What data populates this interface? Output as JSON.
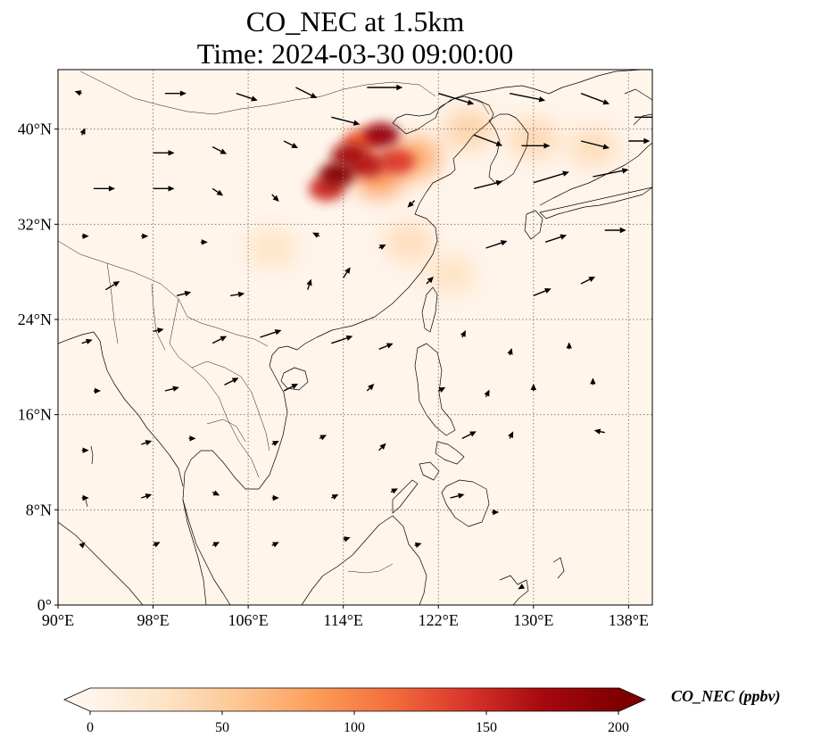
{
  "title": {
    "line1": "CO_NEC at 1.5km",
    "line2": "Time: 2024-03-30 09:00:00"
  },
  "map": {
    "projection": "PlateCarree",
    "lon_range": [
      90,
      140
    ],
    "lat_range": [
      0,
      45
    ],
    "lon_ticks": [
      {
        "value": 90,
        "label": "90°E"
      },
      {
        "value": 98,
        "label": "98°E"
      },
      {
        "value": 106,
        "label": "106°E"
      },
      {
        "value": 114,
        "label": "114°E"
      },
      {
        "value": 122,
        "label": "122°E"
      },
      {
        "value": 130,
        "label": "130°E"
      },
      {
        "value": 138,
        "label": "138°E"
      }
    ],
    "lat_ticks": [
      {
        "value": 0,
        "label": "0°"
      },
      {
        "value": 8,
        "label": "8°N"
      },
      {
        "value": 16,
        "label": "16°N"
      },
      {
        "value": 24,
        "label": "24°N"
      },
      {
        "value": 32,
        "label": "32°N"
      },
      {
        "value": 40,
        "label": "40°N"
      }
    ],
    "gridlines": true,
    "background_color": "#fff5eb",
    "coastline_color": "#000000"
  },
  "chart_data": {
    "type": "heatmap",
    "variable": "CO_NEC",
    "level": "1.5km",
    "time": "2024-03-30 09:00:00",
    "colormap": "OrRd",
    "vmin": 0,
    "vmax": 200,
    "hotspots": [
      {
        "lon": 113.5,
        "lat": 36.2,
        "value": 195
      },
      {
        "lon": 114.5,
        "lat": 37.8,
        "value": 170
      },
      {
        "lon": 117.2,
        "lat": 39.5,
        "value": 180
      },
      {
        "lon": 116.0,
        "lat": 37.0,
        "value": 160
      },
      {
        "lon": 118.5,
        "lat": 37.3,
        "value": 140
      },
      {
        "lon": 112.6,
        "lat": 35.0,
        "value": 150
      },
      {
        "lon": 115.5,
        "lat": 39.0,
        "value": 120
      },
      {
        "lon": 120.0,
        "lat": 37.6,
        "value": 80
      },
      {
        "lon": 117.0,
        "lat": 36.0,
        "value": 90
      },
      {
        "lon": 124.5,
        "lat": 40.0,
        "value": 45
      },
      {
        "lon": 130.0,
        "lat": 39.2,
        "value": 40
      },
      {
        "lon": 135.0,
        "lat": 38.5,
        "value": 35
      },
      {
        "lon": 119.5,
        "lat": 30.5,
        "value": 35
      },
      {
        "lon": 108.0,
        "lat": 30.0,
        "value": 28
      },
      {
        "lon": 123.0,
        "lat": 27.8,
        "value": 30
      }
    ],
    "wind_vectors": [
      {
        "lon": 92,
        "lat": 43,
        "u": -1,
        "v": 0.3
      },
      {
        "lon": 99,
        "lat": 43,
        "u": 3,
        "v": 0
      },
      {
        "lon": 105,
        "lat": 43,
        "u": 3,
        "v": -1
      },
      {
        "lon": 110,
        "lat": 43.5,
        "u": 3,
        "v": -1.5
      },
      {
        "lon": 116,
        "lat": 43.5,
        "u": 5,
        "v": 0
      },
      {
        "lon": 122,
        "lat": 43,
        "u": 5,
        "v": -1.5
      },
      {
        "lon": 128,
        "lat": 43,
        "u": 5,
        "v": -1
      },
      {
        "lon": 134,
        "lat": 43,
        "u": 4,
        "v": -1.5
      },
      {
        "lon": 138.5,
        "lat": 41,
        "u": 4,
        "v": 0
      },
      {
        "lon": 92,
        "lat": 39.5,
        "u": 0.5,
        "v": 1
      },
      {
        "lon": 98,
        "lat": 38,
        "u": 3,
        "v": 0
      },
      {
        "lon": 103,
        "lat": 38.5,
        "u": 2,
        "v": -1
      },
      {
        "lon": 109,
        "lat": 39,
        "u": 2,
        "v": -1
      },
      {
        "lon": 113,
        "lat": 41,
        "u": 4,
        "v": -1
      },
      {
        "lon": 125,
        "lat": 39.5,
        "u": 4,
        "v": -1.5
      },
      {
        "lon": 129,
        "lat": 38.6,
        "u": 4,
        "v": 0
      },
      {
        "lon": 134,
        "lat": 39,
        "u": 4,
        "v": -1
      },
      {
        "lon": 138,
        "lat": 39,
        "u": 3,
        "v": 0
      },
      {
        "lon": 93,
        "lat": 35,
        "u": 3,
        "v": 0
      },
      {
        "lon": 98,
        "lat": 35,
        "u": 3,
        "v": 0
      },
      {
        "lon": 103,
        "lat": 35,
        "u": 1.5,
        "v": -1
      },
      {
        "lon": 108,
        "lat": 34.5,
        "u": 1,
        "v": -1
      },
      {
        "lon": 120,
        "lat": 34,
        "u": -1,
        "v": -1
      },
      {
        "lon": 125,
        "lat": 35,
        "u": 4,
        "v": 1
      },
      {
        "lon": 130,
        "lat": 35.5,
        "u": 5,
        "v": 1.5
      },
      {
        "lon": 135,
        "lat": 36,
        "u": 5,
        "v": 1
      },
      {
        "lon": 92,
        "lat": 31,
        "u": 1,
        "v": 0
      },
      {
        "lon": 97,
        "lat": 31,
        "u": 1,
        "v": 0
      },
      {
        "lon": 102,
        "lat": 30.5,
        "u": 1,
        "v": 0
      },
      {
        "lon": 112,
        "lat": 31,
        "u": -1,
        "v": 0.5
      },
      {
        "lon": 117,
        "lat": 30,
        "u": 1,
        "v": 0.5
      },
      {
        "lon": 126,
        "lat": 30,
        "u": 3,
        "v": 1
      },
      {
        "lon": 131,
        "lat": 30.5,
        "u": 3,
        "v": 1
      },
      {
        "lon": 136,
        "lat": 31.5,
        "u": 3,
        "v": 0
      },
      {
        "lon": 94,
        "lat": 26.5,
        "u": 2,
        "v": 1.2
      },
      {
        "lon": 100,
        "lat": 26,
        "u": 2,
        "v": 0.5
      },
      {
        "lon": 104.5,
        "lat": 26,
        "u": 2,
        "v": 0.3
      },
      {
        "lon": 111,
        "lat": 26.5,
        "u": 0.5,
        "v": 1.5
      },
      {
        "lon": 114,
        "lat": 27.5,
        "u": 1,
        "v": 1.5
      },
      {
        "lon": 121,
        "lat": 27,
        "u": 1,
        "v": 1
      },
      {
        "lon": 130,
        "lat": 26,
        "u": 2.5,
        "v": 1
      },
      {
        "lon": 134,
        "lat": 27,
        "u": 2,
        "v": 1
      },
      {
        "lon": 92,
        "lat": 22,
        "u": 1.5,
        "v": 0.5
      },
      {
        "lon": 98,
        "lat": 23,
        "u": 1.5,
        "v": 0.3
      },
      {
        "lon": 103,
        "lat": 22,
        "u": 2,
        "v": 1
      },
      {
        "lon": 107,
        "lat": 22.5,
        "u": 3,
        "v": 1
      },
      {
        "lon": 113,
        "lat": 22,
        "u": 3,
        "v": 1
      },
      {
        "lon": 117,
        "lat": 21.5,
        "u": 2,
        "v": 0.8
      },
      {
        "lon": 124,
        "lat": 22.5,
        "u": 0.5,
        "v": 1
      },
      {
        "lon": 128,
        "lat": 21,
        "u": 0.3,
        "v": 1
      },
      {
        "lon": 133,
        "lat": 21.5,
        "u": 0,
        "v": 1
      },
      {
        "lon": 93,
        "lat": 18,
        "u": 1,
        "v": 0
      },
      {
        "lon": 99,
        "lat": 18,
        "u": 2,
        "v": 0.5
      },
      {
        "lon": 104,
        "lat": 18.5,
        "u": 2,
        "v": 1
      },
      {
        "lon": 109,
        "lat": 18,
        "u": 2,
        "v": 1
      },
      {
        "lon": 116,
        "lat": 18,
        "u": 1,
        "v": 1
      },
      {
        "lon": 122,
        "lat": 18,
        "u": 1,
        "v": 0.5
      },
      {
        "lon": 126,
        "lat": 17.5,
        "u": 0.5,
        "v": 1
      },
      {
        "lon": 130,
        "lat": 18,
        "u": 0,
        "v": 1
      },
      {
        "lon": 135,
        "lat": 18.5,
        "u": 0,
        "v": 1
      },
      {
        "lon": 92,
        "lat": 13,
        "u": 1,
        "v": 0
      },
      {
        "lon": 97,
        "lat": 13.5,
        "u": 1.5,
        "v": 0.5
      },
      {
        "lon": 101,
        "lat": 14,
        "u": 1,
        "v": 0
      },
      {
        "lon": 108,
        "lat": 13.5,
        "u": 1,
        "v": 0.5
      },
      {
        "lon": 112,
        "lat": 14,
        "u": 1,
        "v": 0.5
      },
      {
        "lon": 117,
        "lat": 13,
        "u": 1,
        "v": 1
      },
      {
        "lon": 124,
        "lat": 14,
        "u": 2,
        "v": 1
      },
      {
        "lon": 128,
        "lat": 14,
        "u": 0.5,
        "v": 1
      },
      {
        "lon": 136,
        "lat": 14.5,
        "u": -1.5,
        "v": 0.3
      },
      {
        "lon": 92,
        "lat": 9,
        "u": 1,
        "v": 0
      },
      {
        "lon": 97,
        "lat": 9,
        "u": 1.5,
        "v": 0.5
      },
      {
        "lon": 103,
        "lat": 9.5,
        "u": 1,
        "v": -0.5
      },
      {
        "lon": 108,
        "lat": 9,
        "u": 1,
        "v": 0
      },
      {
        "lon": 113,
        "lat": 9,
        "u": 1,
        "v": 0.5
      },
      {
        "lon": 118,
        "lat": 9.5,
        "u": 1,
        "v": 0.5
      },
      {
        "lon": 123,
        "lat": 9,
        "u": 2,
        "v": 0.5
      },
      {
        "lon": 126.5,
        "lat": 7.8,
        "u": 1,
        "v": 0
      },
      {
        "lon": 92,
        "lat": 5,
        "u": 0.5,
        "v": 0.5
      },
      {
        "lon": 98,
        "lat": 5,
        "u": 1,
        "v": 0.5
      },
      {
        "lon": 103,
        "lat": 5,
        "u": 1,
        "v": 0.5
      },
      {
        "lon": 108,
        "lat": 5,
        "u": 1,
        "v": 0.5
      },
      {
        "lon": 114,
        "lat": 5.5,
        "u": 1,
        "v": 0.3
      },
      {
        "lon": 120,
        "lat": 5,
        "u": 1,
        "v": 0.3
      },
      {
        "lon": 129,
        "lat": 1.5,
        "u": -0.5,
        "v": -0.3
      }
    ]
  },
  "colorbar": {
    "label": "CO_NEC (ppbv)",
    "ticks": [
      "0",
      "50",
      "100",
      "150",
      "200"
    ],
    "extend": "both",
    "stops": [
      "#fff5eb",
      "#fee3c5",
      "#fdc590",
      "#fd9c59",
      "#f26d3c",
      "#d8342b",
      "#a5080e",
      "#7f0000"
    ]
  }
}
